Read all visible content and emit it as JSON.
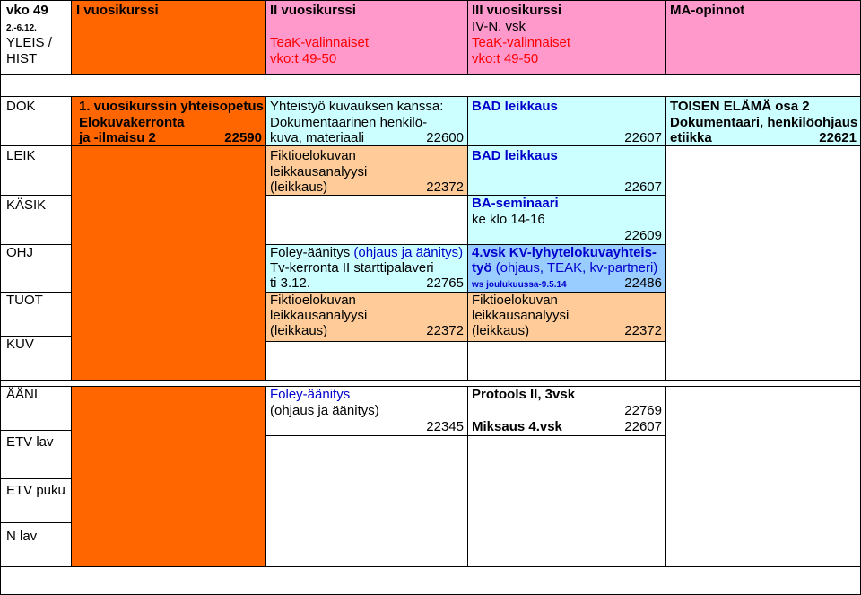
{
  "header": {
    "week": "vko 49",
    "dates": "2.-6.12.",
    "yleis": "YLEIS /",
    "hist": "HIST",
    "col1": "I vuosikurssi",
    "col2": "II vuosikurssi",
    "col3": "III vuosikurssi",
    "col3b": "IV-N. vsk",
    "col4": "MA-opinnot",
    "teak2a": "TeaK-valinnaiset",
    "teak2b": "vko:t 49-50",
    "teak3a": "TeaK-valinnaiset",
    "teak3b": "vko:t 49-50"
  },
  "rows": {
    "dok": "DOK",
    "leik": "LEIK",
    "kasik": "KÄSIK",
    "ohj": "OHJ",
    "tuot": "TUOT",
    "kuv": "KUV",
    "aani": "ÄÄNI",
    "etvlav": "ETV lav",
    "etvpuku": "ETV puku",
    "nlav": "N lav"
  },
  "col1": {
    "line1": "1. vuosikurssin yhteisopetus:",
    "line2": "Elokuvakerronta",
    "line3": "ja -ilmaisu 2",
    "code": "22590"
  },
  "col2": {
    "dok1": "Yhteistyö kuvauksen kanssa:",
    "dok2": "Dokumentaarinen henkilö-",
    "dok3": "kuva, materiaali",
    "dok_code": "22600",
    "leik1": "Fiktioelokuvan",
    "leik2": "leikkausanalyysi",
    "leik3": "(leikkaus)",
    "leik_code": "22372",
    "ohj1a": "Foley-äänitys",
    "ohj1b": "(ohjaus ja äänitys)",
    "ohj2": "Tv-kerronta II starttipalaveri",
    "ohj3": "ti 3.12.",
    "ohj_code": "22765",
    "tuot1": "Fiktioelokuvan",
    "tuot2": "leikkausanalyysi",
    "tuot3": "(leikkaus)",
    "tuot_code": "22372",
    "aani1": "Foley-äänitys",
    "aani2": "(ohjaus ja äänitys)",
    "aani_code": "22345"
  },
  "col3": {
    "dok1": "BAD leikkaus",
    "dok_code": "22607",
    "leik1": "BAD leikkaus",
    "leik_code": "22607",
    "kasik1": "BA-seminaari",
    "kasik2": "ke klo 14-16",
    "kasik_code": "22609",
    "ohj1": "4.vsk KV-lyhytelokuvayhteis-",
    "ohj2a": "työ",
    "ohj2b": "(ohjaus, TEAK, kv-partneri)",
    "ohj3": "ws joulukuussa-9.5.14",
    "ohj_code": "22486",
    "tuot1": "Fiktioelokuvan",
    "tuot2": "leikkausanalyysi",
    "tuot3": "(leikkaus)",
    "tuot_code": "22372",
    "aani1": "Protools II, 3vsk",
    "aani_code": "22769",
    "aani2": "Miksaus 4.vsk",
    "aani2_code": "22607"
  },
  "col4": {
    "dok1": "TOISEN ELÄMÄ osa 2",
    "dok2": "Dokumentaari, henkilöohjaus",
    "dok3": "etiikka",
    "dok_code": "22621"
  }
}
